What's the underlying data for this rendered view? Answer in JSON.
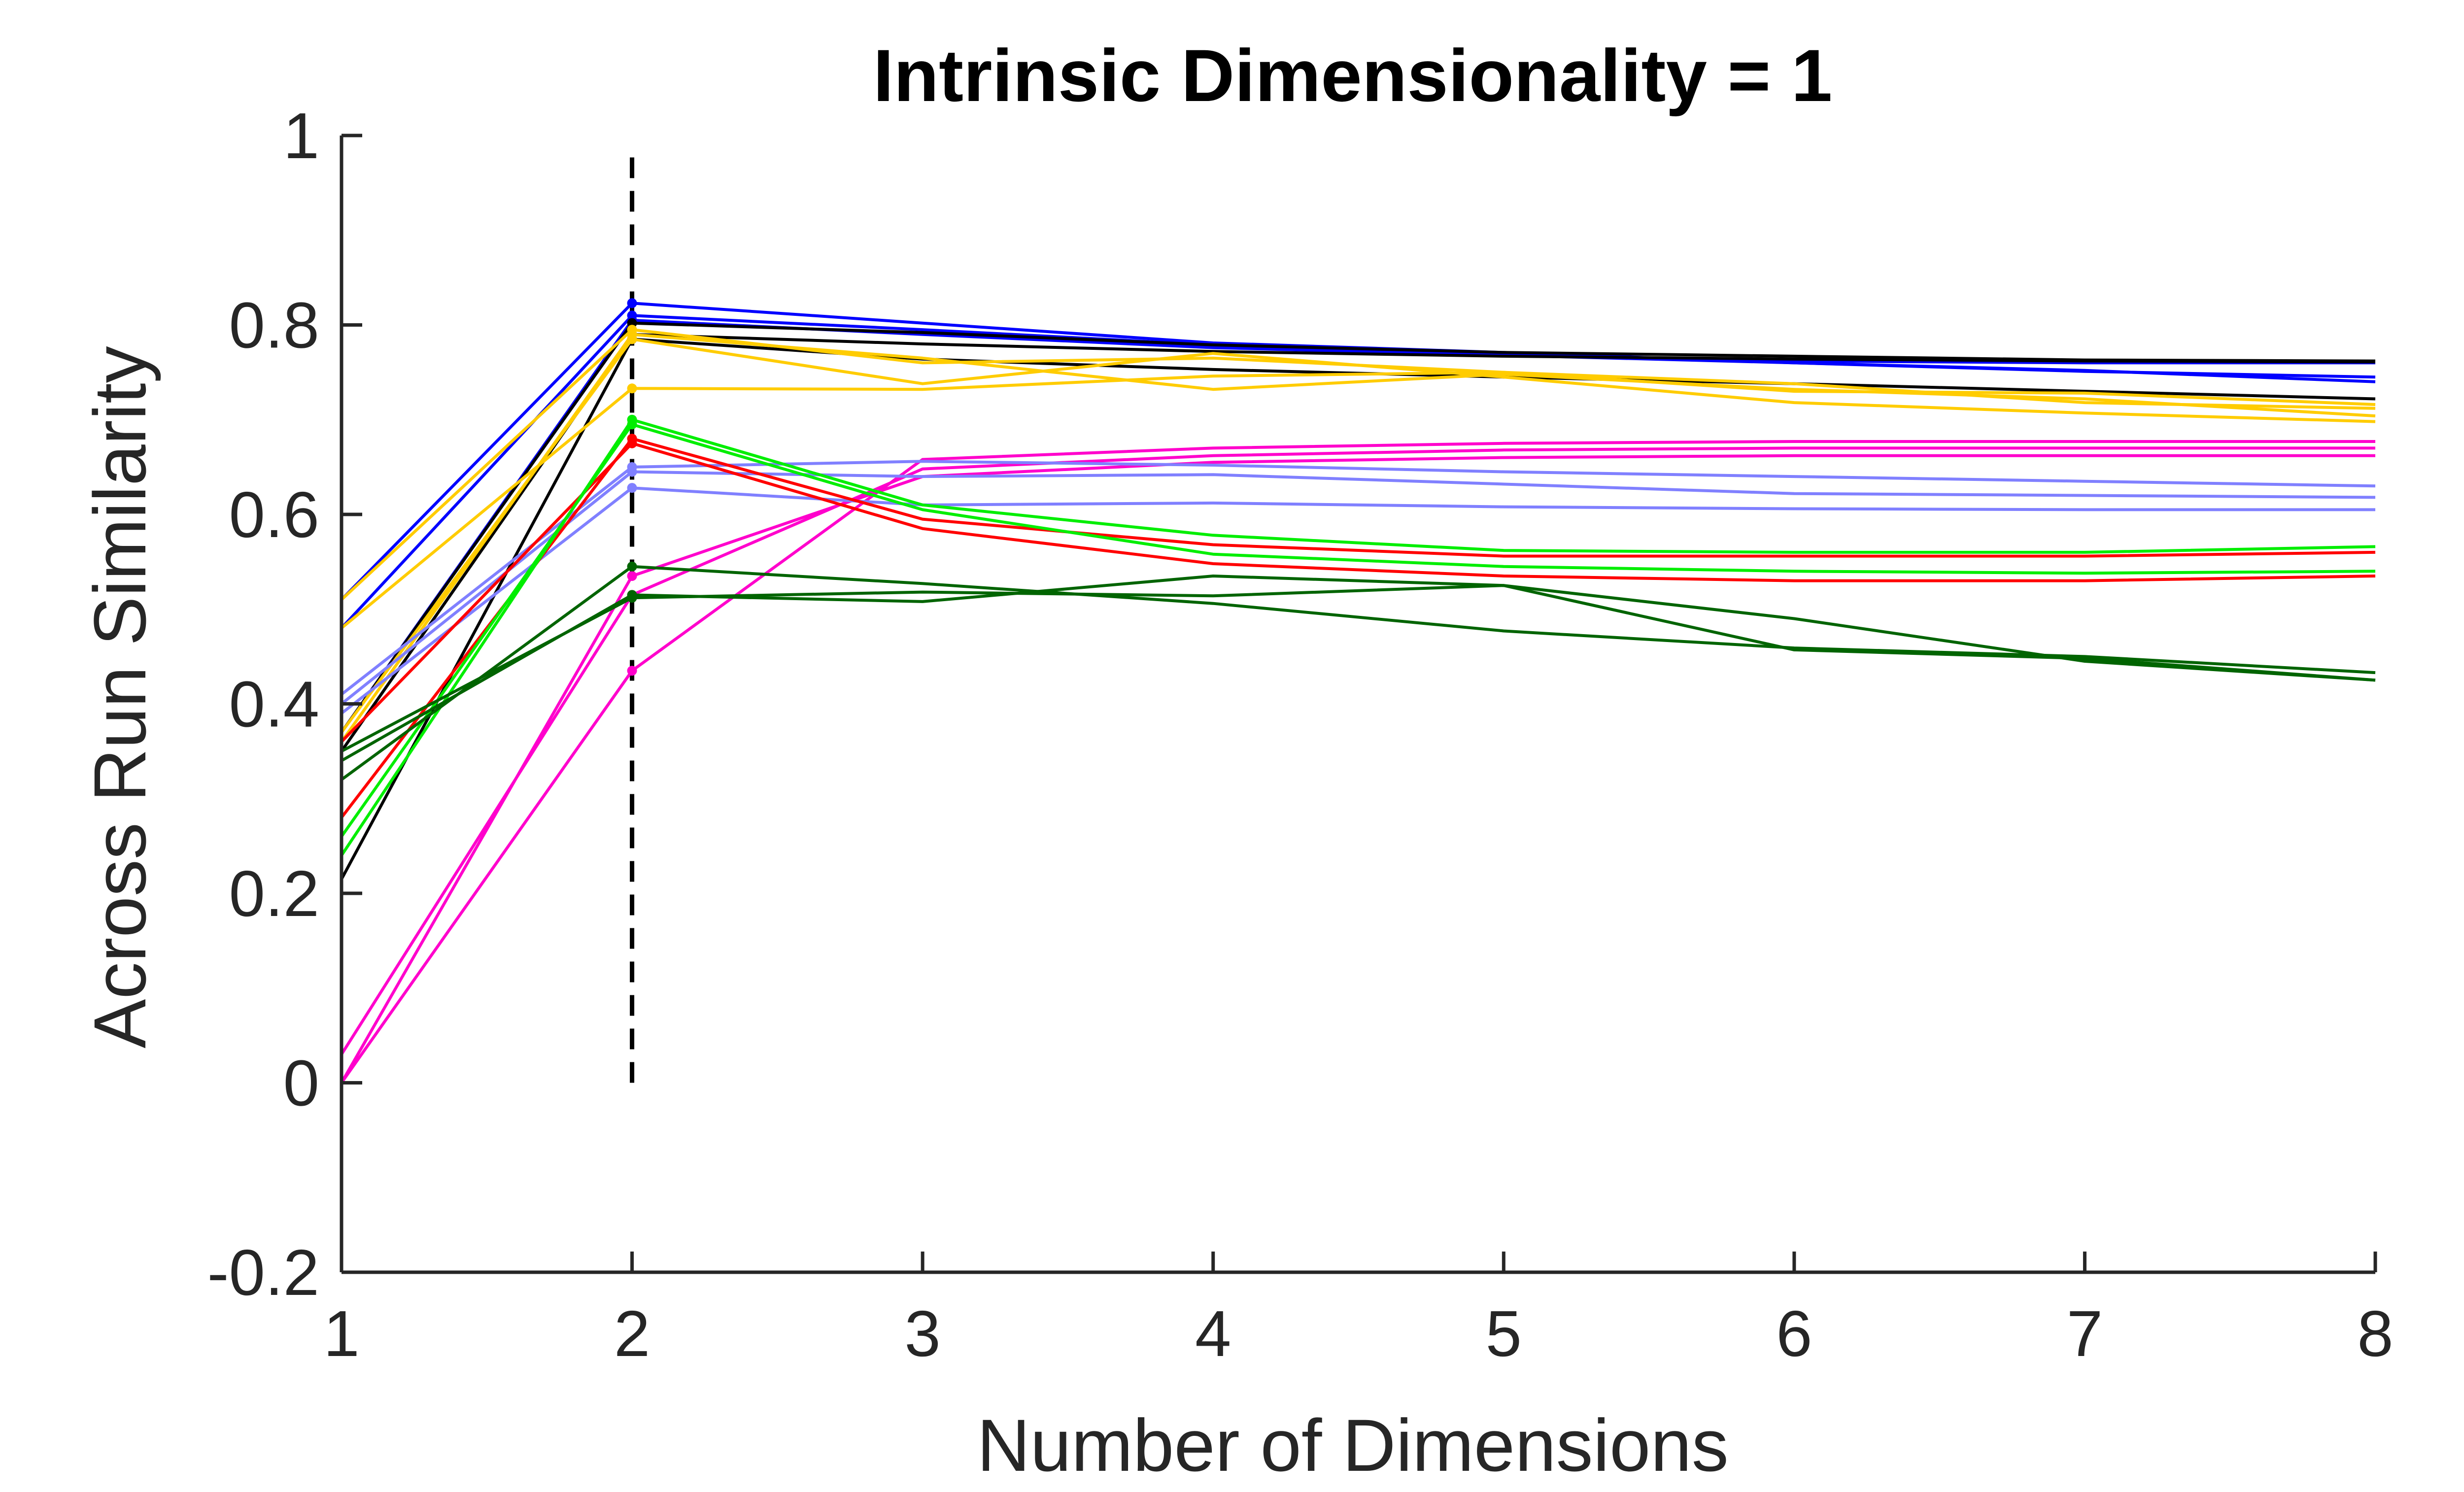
{
  "chart_data": {
    "type": "line",
    "title": "Intrinsic Dimensionality = 1",
    "xlabel": "Number of Dimensions",
    "ylabel": "Across Run Similarity",
    "xlim": [
      1,
      8
    ],
    "ylim": [
      -0.2,
      1
    ],
    "xticks": [
      "1",
      "2",
      "3",
      "4",
      "5",
      "6",
      "7",
      "8"
    ],
    "yticks": [
      "-0.2",
      "0",
      "0.2",
      "0.4",
      "0.6",
      "0.8",
      "1"
    ],
    "grid": false,
    "legend": "none",
    "reference_line": {
      "x": 2,
      "y_range": [
        0,
        0.99
      ],
      "style": "dashed",
      "color": "#000000"
    },
    "x": [
      1,
      2,
      3,
      4,
      5,
      6,
      7,
      8
    ],
    "series": [
      {
        "color": "#0000ff",
        "values": [
          0.51,
          0.823,
          0.802,
          0.781,
          0.771,
          0.76,
          0.751,
          0.745
        ]
      },
      {
        "color": "#0000ff",
        "values": [
          0.48,
          0.81,
          0.795,
          0.779,
          0.768,
          0.76,
          0.752,
          0.74
        ]
      },
      {
        "color": "#0000ff",
        "values": [
          0.37,
          0.805,
          0.79,
          0.776,
          0.768,
          0.762,
          0.76,
          0.76
        ]
      },
      {
        "color": "#000000",
        "values": [
          0.37,
          0.802,
          0.792,
          0.779,
          0.771,
          0.767,
          0.763,
          0.762
        ]
      },
      {
        "color": "#000000",
        "values": [
          0.215,
          0.785,
          0.764,
          0.753,
          0.745,
          0.738,
          0.73,
          0.722
        ]
      },
      {
        "color": "#000000",
        "values": [
          0.35,
          0.79,
          0.78,
          0.772,
          0.767,
          0.764,
          0.762,
          0.761
        ]
      },
      {
        "color": "#ffcc00",
        "values": [
          0.51,
          0.795,
          0.76,
          0.765,
          0.75,
          0.73,
          0.728,
          0.716
        ]
      },
      {
        "color": "#ffcc00",
        "values": [
          0.48,
          0.733,
          0.732,
          0.746,
          0.75,
          0.738,
          0.718,
          0.712
        ]
      },
      {
        "color": "#ffcc00",
        "values": [
          0.37,
          0.785,
          0.738,
          0.77,
          0.745,
          0.718,
          0.707,
          0.698
        ]
      },
      {
        "color": "#ffcc00",
        "values": [
          0.36,
          0.79,
          0.765,
          0.732,
          0.748,
          0.732,
          0.722,
          0.704
        ]
      },
      {
        "color": "#ff00cc",
        "values": [
          0.0,
          0.435,
          0.658,
          0.67,
          0.675,
          0.677,
          0.677,
          0.677
        ]
      },
      {
        "color": "#ff00cc",
        "values": [
          0.03,
          0.515,
          0.648,
          0.662,
          0.668,
          0.67,
          0.67,
          0.67
        ]
      },
      {
        "color": "#ff00cc",
        "values": [
          0.0,
          0.535,
          0.64,
          0.655,
          0.66,
          0.662,
          0.662,
          0.662
        ]
      },
      {
        "color": "#8080ff",
        "values": [
          0.41,
          0.65,
          0.656,
          0.652,
          0.645,
          0.64,
          0.635,
          0.63
        ]
      },
      {
        "color": "#8080ff",
        "values": [
          0.4,
          0.645,
          0.64,
          0.642,
          0.632,
          0.622,
          0.62,
          0.618
        ]
      },
      {
        "color": "#8080ff",
        "values": [
          0.39,
          0.628,
          0.61,
          0.612,
          0.608,
          0.606,
          0.605,
          0.605
        ]
      },
      {
        "color": "#ff0000",
        "values": [
          0.28,
          0.68,
          0.595,
          0.568,
          0.556,
          0.556,
          0.556,
          0.56
        ]
      },
      {
        "color": "#ff0000",
        "values": [
          0.36,
          0.675,
          0.585,
          0.548,
          0.535,
          0.53,
          0.53,
          0.535
        ]
      },
      {
        "color": "#00ee00",
        "values": [
          0.24,
          0.7,
          0.61,
          0.578,
          0.562,
          0.56,
          0.56,
          0.566
        ]
      },
      {
        "color": "#00ee00",
        "values": [
          0.26,
          0.695,
          0.605,
          0.558,
          0.545,
          0.54,
          0.538,
          0.54
        ]
      },
      {
        "color": "#006400",
        "values": [
          0.32,
          0.545,
          0.527,
          0.506,
          0.477,
          0.459,
          0.45,
          0.433
        ]
      },
      {
        "color": "#006400",
        "values": [
          0.34,
          0.515,
          0.508,
          0.535,
          0.525,
          0.49,
          0.445,
          0.425
        ]
      },
      {
        "color": "#006400",
        "values": [
          0.35,
          0.512,
          0.518,
          0.514,
          0.525,
          0.457,
          0.448,
          0.425
        ]
      }
    ]
  }
}
